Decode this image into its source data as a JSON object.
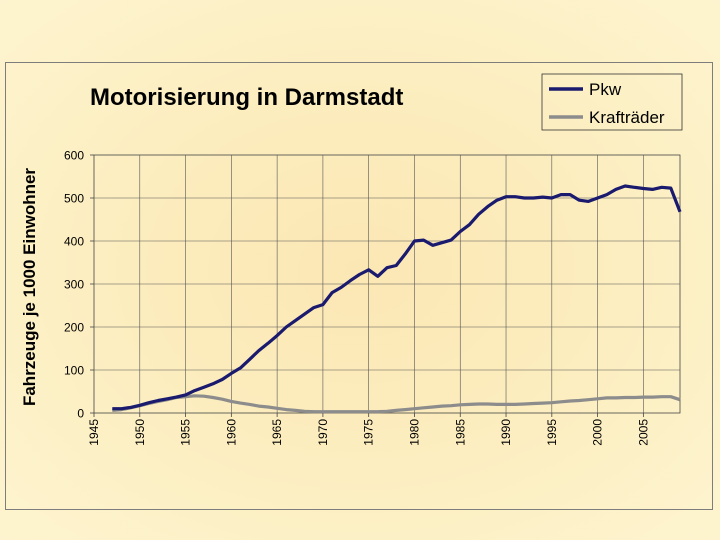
{
  "chart_data": {
    "type": "line",
    "title": "Motorisierung in Darmstadt",
    "xlabel": "",
    "ylabel": "Fahrzeuge je 1000 Einwohner",
    "xlim": [
      1945,
      2009
    ],
    "ylim": [
      0,
      600
    ],
    "x_ticks": [
      "1945",
      "1950",
      "1955",
      "1960",
      "1965",
      "1970",
      "1975",
      "1980",
      "1985",
      "1990",
      "1995",
      "2000",
      "2005"
    ],
    "y_ticks": [
      "0",
      "100",
      "200",
      "300",
      "400",
      "500",
      "600"
    ],
    "grid": true,
    "legend_position": "top-right",
    "series": [
      {
        "name": "Pkw",
        "color": "#1a1a6e",
        "x": [
          1947,
          1948,
          1949,
          1950,
          1951,
          1952,
          1953,
          1954,
          1955,
          1956,
          1957,
          1958,
          1959,
          1960,
          1961,
          1962,
          1963,
          1964,
          1965,
          1966,
          1967,
          1968,
          1969,
          1970,
          1971,
          1972,
          1973,
          1974,
          1975,
          1976,
          1977,
          1978,
          1979,
          1980,
          1981,
          1982,
          1983,
          1984,
          1985,
          1986,
          1987,
          1988,
          1989,
          1990,
          1991,
          1992,
          1993,
          1994,
          1995,
          1996,
          1997,
          1998,
          1999,
          2000,
          2001,
          2002,
          2003,
          2004,
          2005,
          2006,
          2007,
          2008,
          2009
        ],
        "values": [
          10,
          10,
          13,
          18,
          24,
          29,
          33,
          37,
          42,
          52,
          60,
          68,
          78,
          92,
          105,
          125,
          145,
          162,
          180,
          200,
          215,
          230,
          245,
          252,
          280,
          292,
          308,
          322,
          333,
          318,
          338,
          343,
          370,
          400,
          402,
          390,
          396,
          402,
          422,
          438,
          462,
          480,
          495,
          503,
          503,
          500,
          500,
          502,
          500,
          508,
          508,
          495,
          492,
          500,
          508,
          520,
          528,
          525,
          522,
          520,
          525,
          523,
          468
        ]
      },
      {
        "name": "Krafträder",
        "color": "#8c8c8c",
        "x": [
          1947,
          1948,
          1949,
          1950,
          1951,
          1952,
          1953,
          1954,
          1955,
          1956,
          1957,
          1958,
          1959,
          1960,
          1961,
          1962,
          1963,
          1964,
          1965,
          1966,
          1967,
          1968,
          1969,
          1970,
          1971,
          1972,
          1973,
          1974,
          1975,
          1976,
          1977,
          1978,
          1979,
          1980,
          1981,
          1982,
          1983,
          1984,
          1985,
          1986,
          1987,
          1988,
          1989,
          1990,
          1991,
          1992,
          1993,
          1994,
          1995,
          1996,
          1997,
          1998,
          1999,
          2000,
          2001,
          2002,
          2003,
          2004,
          2005,
          2006,
          2007,
          2008,
          2009
        ],
        "values": [
          6,
          8,
          12,
          17,
          22,
          27,
          31,
          36,
          38,
          40,
          39,
          36,
          32,
          27,
          23,
          20,
          16,
          14,
          11,
          8,
          6,
          4,
          3,
          3,
          3,
          3,
          3,
          3,
          3,
          3,
          4,
          6,
          8,
          10,
          12,
          14,
          16,
          17,
          19,
          20,
          21,
          21,
          20,
          20,
          20,
          21,
          22,
          23,
          24,
          26,
          28,
          29,
          31,
          33,
          35,
          35,
          36,
          36,
          37,
          37,
          38,
          38,
          31
        ]
      }
    ]
  }
}
